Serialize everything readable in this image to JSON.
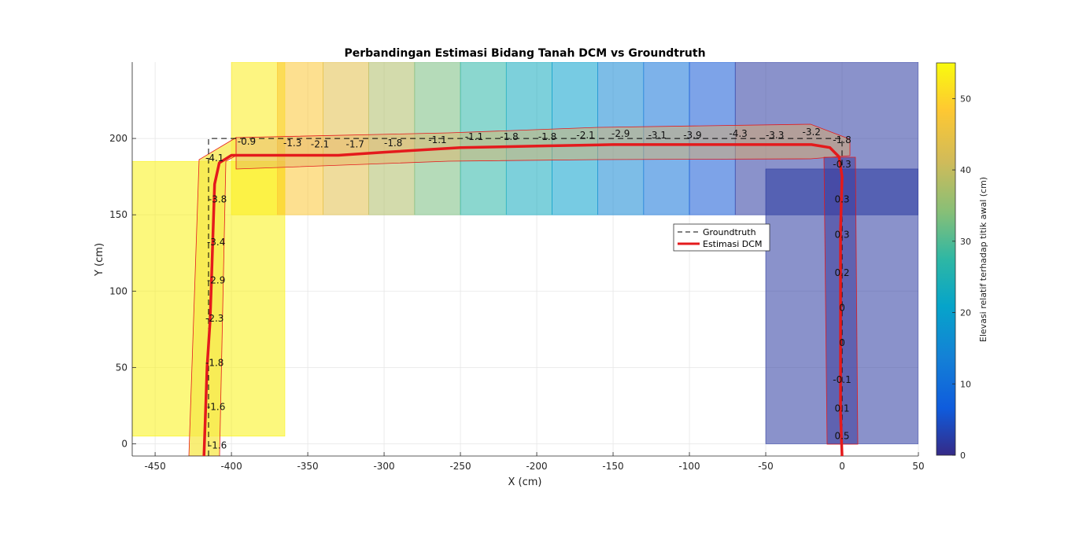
{
  "chart_data": {
    "type": "line",
    "title": "Perbandingan Estimasi Bidang Tanah DCM vs Groundtruth",
    "xlabel": "X (cm)",
    "ylabel": "Y (cm)",
    "xlim": [
      -465,
      50
    ],
    "ylim": [
      -8,
      250
    ],
    "xticks": [
      -450,
      -400,
      -350,
      -300,
      -250,
      -200,
      -150,
      -100,
      -50,
      0,
      50
    ],
    "yticks": [
      0,
      50,
      100,
      150,
      200
    ],
    "grid": true,
    "legend_position": "center-right",
    "series": [
      {
        "name": "Groundtruth",
        "style": "dashed",
        "color": "#000000",
        "points": [
          [
            -415,
            -8
          ],
          [
            -415,
            200
          ],
          [
            0,
            200
          ],
          [
            0,
            -8
          ]
        ]
      },
      {
        "name": "Estimasi DCM",
        "style": "solid",
        "color": "#e41a1c",
        "points": [
          [
            -418,
            -8
          ],
          [
            -417,
            20
          ],
          [
            -416,
            50
          ],
          [
            -414,
            80
          ],
          [
            -413,
            110
          ],
          [
            -412,
            140
          ],
          [
            -411,
            170
          ],
          [
            -408,
            184
          ],
          [
            -400,
            189
          ],
          [
            -370,
            189
          ],
          [
            -330,
            189
          ],
          [
            -300,
            191
          ],
          [
            -250,
            194
          ],
          [
            -200,
            195
          ],
          [
            -150,
            196
          ],
          [
            -100,
            196
          ],
          [
            -50,
            196
          ],
          [
            -20,
            196
          ],
          [
            -8,
            194
          ],
          [
            -2,
            188
          ],
          [
            0,
            175
          ],
          [
            -1,
            140
          ],
          [
            -1,
            100
          ],
          [
            -1,
            60
          ],
          [
            -1,
            20
          ],
          [
            0,
            -8
          ]
        ]
      }
    ],
    "segment_labels": [
      {
        "x": -409,
        "y": -3,
        "text": "-1.6"
      },
      {
        "x": -410,
        "y": 22,
        "text": "-1.6"
      },
      {
        "x": -411,
        "y": 51,
        "text": "-1.8"
      },
      {
        "x": -411,
        "y": 80,
        "text": "-2.3"
      },
      {
        "x": -410,
        "y": 105,
        "text": "-2.9"
      },
      {
        "x": -410,
        "y": 130,
        "text": "-3.4"
      },
      {
        "x": -409,
        "y": 158,
        "text": "-3.8"
      },
      {
        "x": -411,
        "y": 185,
        "text": "-4.1"
      },
      {
        "x": -390,
        "y": 196,
        "text": "-0.9"
      },
      {
        "x": -360,
        "y": 195,
        "text": "-1.3"
      },
      {
        "x": -342,
        "y": 194,
        "text": "-2.1"
      },
      {
        "x": -319,
        "y": 194,
        "text": "-1.7"
      },
      {
        "x": -294,
        "y": 195,
        "text": "-1.8"
      },
      {
        "x": -265,
        "y": 197,
        "text": "-1.1"
      },
      {
        "x": -241,
        "y": 199,
        "text": "-1.1"
      },
      {
        "x": -218,
        "y": 199,
        "text": "-1.8"
      },
      {
        "x": -193,
        "y": 199,
        "text": "-1.8"
      },
      {
        "x": -168,
        "y": 200,
        "text": "-2.1"
      },
      {
        "x": -145,
        "y": 201,
        "text": "-2.9"
      },
      {
        "x": -121,
        "y": 200,
        "text": "-3.1"
      },
      {
        "x": -98,
        "y": 200,
        "text": "-3.9"
      },
      {
        "x": -68,
        "y": 201,
        "text": "-4.3"
      },
      {
        "x": -44,
        "y": 200,
        "text": "-3.3"
      },
      {
        "x": -20,
        "y": 202,
        "text": "-3.2"
      },
      {
        "x": 0,
        "y": 197,
        "text": "-1.8"
      },
      {
        "x": 0,
        "y": 181,
        "text": "-0.3"
      },
      {
        "x": 0,
        "y": 158,
        "text": "0.3"
      },
      {
        "x": 0,
        "y": 135,
        "text": "0.3"
      },
      {
        "x": 0,
        "y": 110,
        "text": "0.2"
      },
      {
        "x": 0,
        "y": 87,
        "text": "0"
      },
      {
        "x": 0,
        "y": 64,
        "text": "0"
      },
      {
        "x": 0,
        "y": 40,
        "text": "-0.1"
      },
      {
        "x": 0,
        "y": 21,
        "text": "0.1"
      },
      {
        "x": 0,
        "y": 3,
        "text": "0.5"
      }
    ],
    "elevation_regions": [
      {
        "x0": -465,
        "x1": -365,
        "y0": 5,
        "y1": 185,
        "elevation": 54
      },
      {
        "x0": -400,
        "x1": -365,
        "y0": 150,
        "y1": 250,
        "elevation": 53
      },
      {
        "x0": -370,
        "x1": -340,
        "y0": 150,
        "y1": 250,
        "elevation": 48
      },
      {
        "x0": -340,
        "x1": -310,
        "y0": 150,
        "y1": 250,
        "elevation": 44
      },
      {
        "x0": -310,
        "x1": -280,
        "y0": 150,
        "y1": 250,
        "elevation": 38
      },
      {
        "x0": -280,
        "x1": -250,
        "y0": 150,
        "y1": 250,
        "elevation": 33
      },
      {
        "x0": -250,
        "x1": -220,
        "y0": 150,
        "y1": 250,
        "elevation": 27
      },
      {
        "x0": -220,
        "x1": -190,
        "y0": 150,
        "y1": 250,
        "elevation": 23
      },
      {
        "x0": -190,
        "x1": -160,
        "y0": 150,
        "y1": 250,
        "elevation": 20
      },
      {
        "x0": -160,
        "x1": -130,
        "y0": 150,
        "y1": 250,
        "elevation": 15
      },
      {
        "x0": -130,
        "x1": -100,
        "y0": 150,
        "y1": 250,
        "elevation": 11
      },
      {
        "x0": -100,
        "x1": -70,
        "y0": 150,
        "y1": 250,
        "elevation": 6
      },
      {
        "x0": -70,
        "x1": 50,
        "y0": 150,
        "y1": 250,
        "elevation": 2
      },
      {
        "x0": -50,
        "x1": 50,
        "y0": 0,
        "y1": 180,
        "elevation": 2
      }
    ],
    "colorbar": {
      "label": "Elevasi relatif terhadap titik awal (cm)",
      "range": [
        0,
        55
      ],
      "ticks": [
        0,
        10,
        20,
        30,
        40,
        50
      ]
    }
  }
}
